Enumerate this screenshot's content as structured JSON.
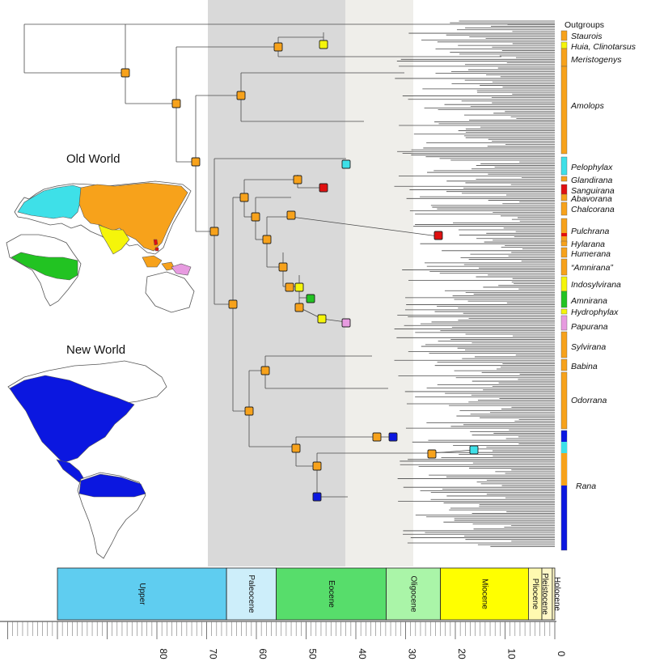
{
  "colors": {
    "orange": "#f7a21b",
    "yellow": "#f5f50a",
    "cyan": "#3ee0e8",
    "red": "#e01010",
    "green": "#22c322",
    "pink": "#e79be0",
    "blue": "#0b17e0",
    "band_eocene": "#d9d9d9",
    "band_oligocene": "#efeeea"
  },
  "map_titles": {
    "old_world": "Old World",
    "new_world": "New World"
  },
  "clades": [
    {
      "name": "Outgroups",
      "italic": false,
      "color": null
    },
    {
      "name": "Staurois",
      "italic": true,
      "color": "orange"
    },
    {
      "name": "Huia, Clinotarsus",
      "italic": true,
      "color": "yellow"
    },
    {
      "name": "Meristogenys",
      "italic": true,
      "color": "orange"
    },
    {
      "name": "Amolops",
      "italic": true,
      "color": "orange"
    },
    {
      "name": "Pelophylax",
      "italic": true,
      "color": "cyan"
    },
    {
      "name": "Glandirana",
      "italic": true,
      "color": "orange"
    },
    {
      "name": "Sanguirana",
      "italic": true,
      "color": "red"
    },
    {
      "name": "Abavorana",
      "italic": true,
      "color": "orange"
    },
    {
      "name": "Chalcorana",
      "italic": true,
      "color": "orange"
    },
    {
      "name": "Pulchrana",
      "italic": true,
      "color": "orange"
    },
    {
      "name": "Hylarana",
      "italic": true,
      "color": "orange"
    },
    {
      "name": "Humerana",
      "italic": true,
      "color": "orange"
    },
    {
      "name": "“Amnirana”",
      "italic": true,
      "color": "orange"
    },
    {
      "name": "Indosylvirana",
      "italic": true,
      "color": "yellow"
    },
    {
      "name": "Amnirana",
      "italic": true,
      "color": "green"
    },
    {
      "name": "Hydrophylax",
      "italic": true,
      "color": "yellow"
    },
    {
      "name": "Papurana",
      "italic": true,
      "color": "pink"
    },
    {
      "name": "Sylvirana",
      "italic": true,
      "color": "orange"
    },
    {
      "name": "Babina",
      "italic": true,
      "color": "orange"
    },
    {
      "name": "Odorrana",
      "italic": true,
      "color": "orange"
    },
    {
      "name": "Rana",
      "italic": true,
      "color": "blue"
    }
  ],
  "time_scale": {
    "unit": "Ma",
    "ticks": [
      80,
      70,
      60,
      50,
      40,
      30,
      20,
      10,
      0
    ],
    "epochs": [
      {
        "name": "Upper",
        "start": 100,
        "end": 66,
        "color": "#5fcdf0",
        "vertical": false
      },
      {
        "name": "Paleocene",
        "start": 66,
        "end": 56,
        "color": "#cdeefa",
        "vertical": true
      },
      {
        "name": "Eocene",
        "start": 56,
        "end": 33.9,
        "color": "#57dd6b",
        "vertical": false
      },
      {
        "name": "Oligocene",
        "start": 33.9,
        "end": 23,
        "color": "#aaf5a8",
        "vertical": true
      },
      {
        "name": "Miocene",
        "start": 23,
        "end": 5.3,
        "color": "#ffff00",
        "vertical": false
      },
      {
        "name": "Pliocene",
        "start": 5.3,
        "end": 2.6,
        "color": "#fffab0",
        "vertical": true
      },
      {
        "name": "Pleistocene",
        "start": 2.6,
        "end": 0.5,
        "color": "#fff8c8",
        "vertical": true
      },
      {
        "name": "Holocene",
        "start": 0.5,
        "end": 0,
        "color": "#fff8c8",
        "vertical": true
      }
    ]
  }
}
